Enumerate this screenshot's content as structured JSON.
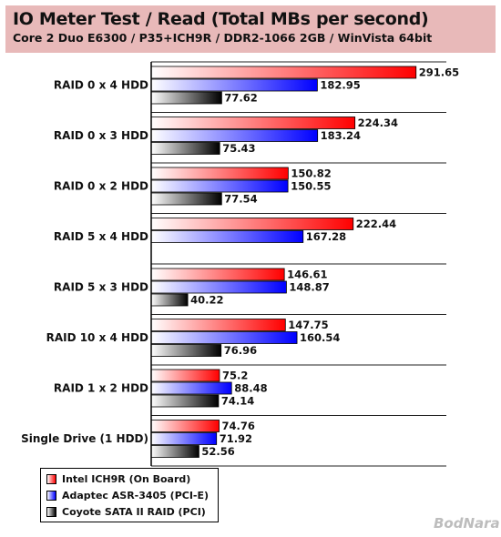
{
  "header": {
    "title": "IO Meter Test / Read (Total MBs per second)",
    "subtitle": "Core 2 Duo E6300 / P35+ICH9R / DDR2-1066 2GB / WinVista 64bit"
  },
  "colors": {
    "intel": [
      "#ffffff",
      "#ff0000"
    ],
    "adaptec": [
      "#ffffff",
      "#0000ff"
    ],
    "coyote": [
      "#ffffff",
      "#000000"
    ],
    "header_bg": "#e8b9b9"
  },
  "watermark": "BodNara",
  "chart_data": {
    "type": "bar",
    "orientation": "horizontal",
    "title": "IO Meter Test / Read (Total MBs per second)",
    "subtitle": "Core 2 Duo E6300 / P35+ICH9R / DDR2-1066 2GB / WinVista 64bit",
    "xlim": [
      0,
      325
    ],
    "grid": false,
    "legend_position": "bottom-left",
    "categories": [
      "RAID 0 x 4 HDD",
      "RAID 0 x 3 HDD",
      "RAID 0 x 2 HDD",
      "RAID 5 x 4 HDD",
      "RAID 5 x 3 HDD",
      "RAID 10 x 4 HDD",
      "RAID 1 x 2 HDD",
      "Single Drive (1 HDD)"
    ],
    "series": [
      {
        "name": "Intel ICH9R (On Board)",
        "values": [
          291.65,
          224.34,
          150.82,
          222.44,
          146.61,
          147.75,
          75.2,
          74.76
        ]
      },
      {
        "name": "Adaptec ASR-3405 (PCI-E)",
        "values": [
          182.95,
          183.24,
          150.55,
          167.28,
          148.87,
          160.54,
          88.48,
          71.92
        ]
      },
      {
        "name": "Coyote SATA II RAID (PCI)",
        "values": [
          77.62,
          75.43,
          77.54,
          null,
          40.22,
          76.96,
          74.14,
          52.56
        ]
      }
    ]
  }
}
